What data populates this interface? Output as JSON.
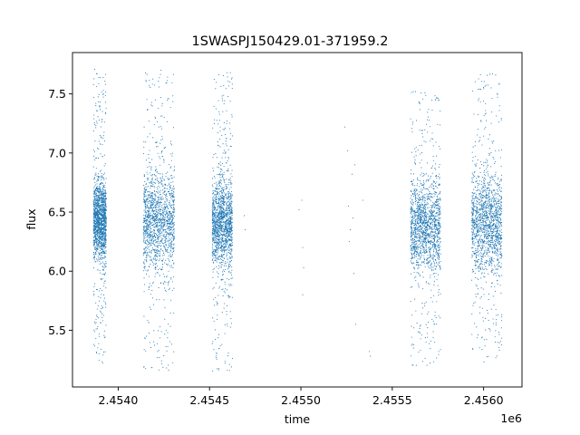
{
  "chart_data": {
    "type": "scatter",
    "title": "1SWASPJ150429.01-371959.2",
    "xlabel": "time",
    "ylabel": "flux",
    "x_offset_label": "1e6",
    "xlim": [
      2453750,
      2456210
    ],
    "ylim": [
      5.02,
      7.85
    ],
    "x_ticks": [
      {
        "value": 2454000,
        "label": "2.4540"
      },
      {
        "value": 2454500,
        "label": "2.4545"
      },
      {
        "value": 2455000,
        "label": "2.4550"
      },
      {
        "value": 2455500,
        "label": "2.4555"
      },
      {
        "value": 2456000,
        "label": "2.4560"
      }
    ],
    "y_ticks": [
      {
        "value": 5.5,
        "label": "5.5"
      },
      {
        "value": 6.0,
        "label": "6.0"
      },
      {
        "value": 6.5,
        "label": "6.5"
      },
      {
        "value": 7.0,
        "label": "7.0"
      },
      {
        "value": 7.5,
        "label": "7.5"
      }
    ],
    "grid": false,
    "marker_color": "#1f77b4",
    "series": [
      {
        "x_range": [
          2453865,
          2453935
        ],
        "center": 6.42,
        "spread": 0.17,
        "outlier_min": 5.22,
        "outlier_max": 7.71
      },
      {
        "x_range": [
          2454138,
          2454308
        ],
        "center": 6.42,
        "spread": 0.22,
        "outlier_min": 5.16,
        "outlier_max": 7.71
      },
      {
        "x_range": [
          2454515,
          2454625
        ],
        "center": 6.4,
        "spread": 0.2,
        "outlier_min": 5.15,
        "outlier_max": 7.7
      },
      {
        "x_range": [
          2455600,
          2455765
        ],
        "center": 6.38,
        "spread": 0.2,
        "outlier_min": 5.19,
        "outlier_max": 7.52
      },
      {
        "x_range": [
          2455935,
          2456100
        ],
        "center": 6.4,
        "spread": 0.21,
        "outlier_min": 5.22,
        "outlier_max": 7.69
      }
    ],
    "sparse_points": [
      [
        2454690,
        6.47
      ],
      [
        2454695,
        6.35
      ],
      [
        2454990,
        6.52
      ],
      [
        2455005,
        6.6
      ],
      [
        2455010,
        6.2
      ],
      [
        2455015,
        6.03
      ],
      [
        2455010,
        5.8
      ],
      [
        2455240,
        7.22
      ],
      [
        2455255,
        7.02
      ],
      [
        2455260,
        6.55
      ],
      [
        2455270,
        6.35
      ],
      [
        2455265,
        6.25
      ],
      [
        2455280,
        6.82
      ],
      [
        2455285,
        6.45
      ],
      [
        2455290,
        5.98
      ],
      [
        2455300,
        5.55
      ],
      [
        2455340,
        6.6
      ],
      [
        2455375,
        5.32
      ],
      [
        2455380,
        5.28
      ],
      [
        2455295,
        6.9
      ]
    ]
  }
}
